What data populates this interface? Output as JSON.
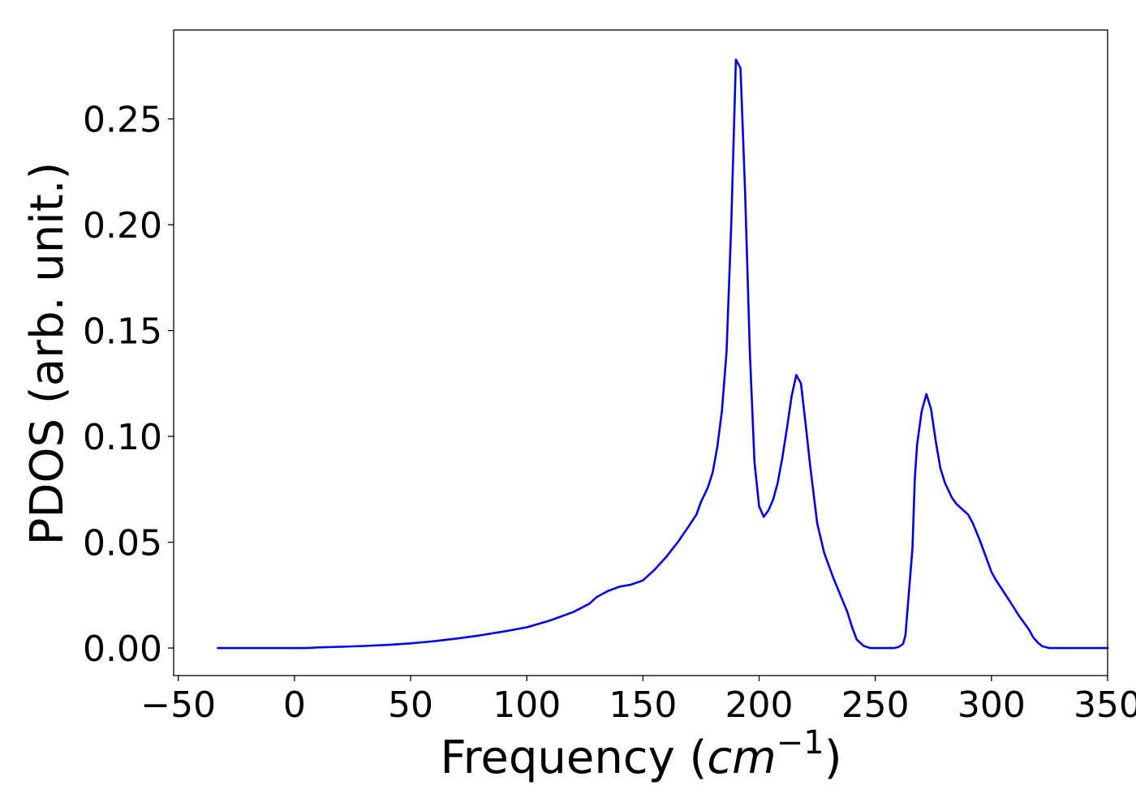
{
  "chart_data": {
    "type": "line",
    "title": "",
    "xlabel_prefix": "Frequency (",
    "xlabel_unit": "cm",
    "xlabel_exp": "−1",
    "xlabel_suffix": ")",
    "ylabel": "PDOS (arb. unit.)",
    "xlim": [
      -52,
      350
    ],
    "ylim": [
      -0.013,
      0.292
    ],
    "xticks": [
      -50,
      0,
      50,
      100,
      150,
      200,
      250,
      300,
      350
    ],
    "xtick_labels": [
      "−50",
      "0",
      "50",
      "100",
      "150",
      "200",
      "250",
      "300",
      "350"
    ],
    "yticks": [
      0.0,
      0.05,
      0.1,
      0.15,
      0.2,
      0.25
    ],
    "ytick_labels": [
      "0.00",
      "0.05",
      "0.10",
      "0.15",
      "0.20",
      "0.25"
    ],
    "grid": false,
    "legend": "none",
    "series": [
      {
        "color": "#0000ee",
        "x": [
          -33,
          -20,
          -10,
          0,
          5,
          10,
          20,
          30,
          40,
          50,
          55,
          60,
          70,
          80,
          90,
          100,
          110,
          120,
          127,
          130,
          135,
          140,
          145,
          150,
          155,
          160,
          165,
          170,
          173,
          175,
          178,
          180,
          182,
          184,
          186,
          188,
          190,
          192,
          194,
          196,
          198,
          200,
          202,
          204,
          206,
          208,
          210,
          212,
          214,
          216,
          218,
          220,
          222,
          225,
          228,
          230,
          232,
          235,
          238,
          240,
          242,
          245,
          248,
          250,
          255,
          258,
          260,
          262,
          263,
          264,
          266,
          267,
          268,
          270,
          272,
          274,
          276,
          278,
          280,
          283,
          285,
          288,
          290,
          292,
          295,
          298,
          300,
          302,
          305,
          308,
          312,
          316,
          318,
          320,
          322,
          325,
          330,
          340,
          350
        ],
        "y": [
          0.0,
          0.0,
          0.0,
          0.0,
          0.0,
          0.0003,
          0.0006,
          0.001,
          0.0015,
          0.0022,
          0.0027,
          0.0032,
          0.0045,
          0.006,
          0.0078,
          0.0098,
          0.013,
          0.017,
          0.021,
          0.024,
          0.027,
          0.029,
          0.03,
          0.032,
          0.037,
          0.043,
          0.05,
          0.058,
          0.063,
          0.069,
          0.076,
          0.083,
          0.095,
          0.112,
          0.14,
          0.2,
          0.278,
          0.274,
          0.215,
          0.14,
          0.088,
          0.067,
          0.062,
          0.065,
          0.07,
          0.078,
          0.09,
          0.104,
          0.119,
          0.129,
          0.125,
          0.106,
          0.086,
          0.059,
          0.045,
          0.039,
          0.033,
          0.025,
          0.017,
          0.01,
          0.004,
          0.001,
          0.0,
          0.0,
          0.0,
          0.0,
          0.0005,
          0.002,
          0.006,
          0.02,
          0.047,
          0.08,
          0.096,
          0.112,
          0.12,
          0.113,
          0.098,
          0.085,
          0.078,
          0.071,
          0.068,
          0.065,
          0.063,
          0.059,
          0.051,
          0.042,
          0.036,
          0.032,
          0.027,
          0.022,
          0.015,
          0.009,
          0.005,
          0.0025,
          0.0008,
          0.0,
          0.0,
          0.0,
          0.0
        ]
      }
    ]
  }
}
